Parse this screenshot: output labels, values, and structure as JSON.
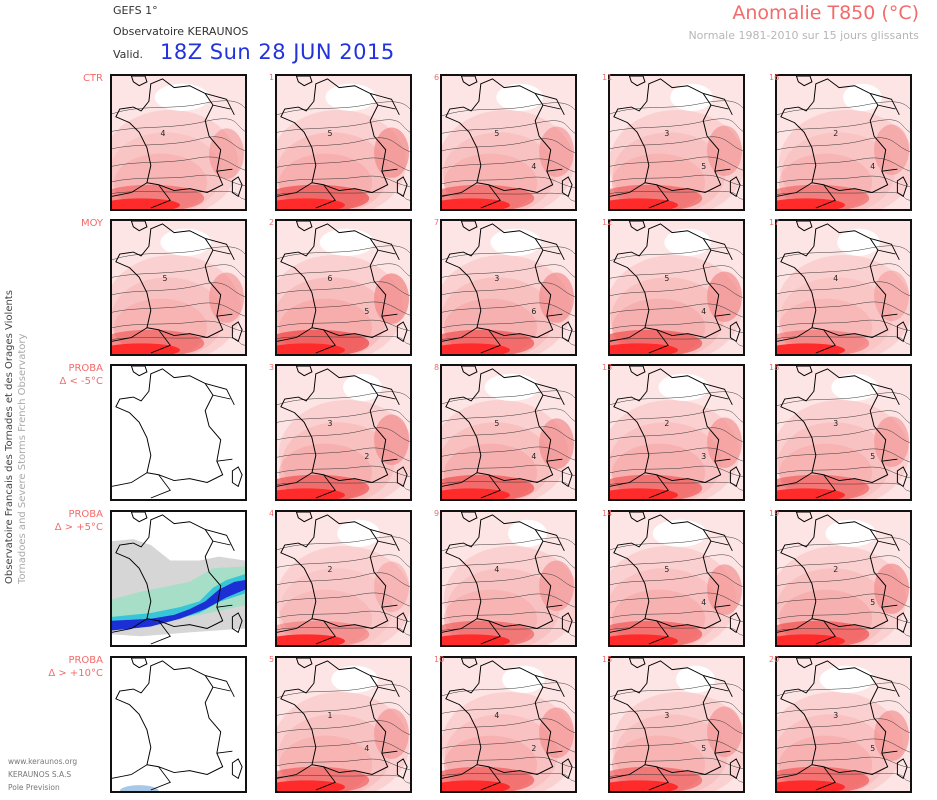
{
  "header": {
    "model": "GEFS 1°",
    "observatory": "Observatoire KERAUNOS",
    "valid_label": "Valid.",
    "valid_time": "18Z Sun 28 JUN 2015",
    "title": "Anomalie T850 (°C)",
    "subtitle": "Normale 1981-2010 sur 15 jours glissants"
  },
  "side_text": {
    "line1": "Observatoire Francais des Tornades et des Orages Violents",
    "line2": "Tornadoes and Severe Storms French Observatory"
  },
  "rows": [
    {
      "label": [
        "CTR"
      ],
      "members": [
        "1",
        "6",
        "11",
        "16"
      ],
      "intensity": [
        0.75,
        0.6,
        0.6,
        0.55
      ]
    },
    {
      "label": [
        "MOY"
      ],
      "members": [
        "2",
        "7",
        "12",
        "17"
      ],
      "intensity": [
        0.8,
        0.7,
        0.7,
        0.45
      ]
    },
    {
      "label": [
        "PROBA",
        "Δ < -5°C"
      ],
      "members": [
        "3",
        "8",
        "13",
        "18"
      ],
      "intensity": [
        0.7,
        0.7,
        0.65,
        0.6
      ]
    },
    {
      "label": [
        "PROBA",
        "Δ > +5°C"
      ],
      "members": [
        "4",
        "9",
        "14",
        "19"
      ],
      "intensity": [
        0.4,
        0.6,
        0.65,
        0.7
      ]
    },
    {
      "label": [
        "PROBA",
        "Δ > +10°C"
      ],
      "members": [
        "5",
        "10",
        "15",
        "20"
      ],
      "intensity": [
        0.6,
        0.65,
        0.6,
        0.65
      ]
    }
  ],
  "contour_labels": {
    "1": [
      "5"
    ],
    "6": [
      "5",
      "4"
    ],
    "11": [
      "3",
      "5"
    ],
    "16": [
      "2",
      "4"
    ],
    "2": [
      "6",
      "5"
    ],
    "7": [
      "3",
      "6"
    ],
    "12": [
      "5",
      "4"
    ],
    "17": [
      "4"
    ],
    "3": [
      "3",
      "2"
    ],
    "8": [
      "5",
      "4"
    ],
    "13": [
      "2",
      "3"
    ],
    "18": [
      "3",
      "5"
    ],
    "4": [
      "2"
    ],
    "9": [
      "4"
    ],
    "14": [
      "5",
      "4"
    ],
    "19": [
      "2",
      "5"
    ],
    "5": [
      "1",
      "4"
    ],
    "10": [
      "4",
      "2"
    ],
    "15": [
      "3",
      "5"
    ],
    "20": [
      "3",
      "5"
    ],
    "ctr": [
      "4"
    ],
    "moy": [
      "5"
    ]
  },
  "footer": {
    "site": "www.keraunos.org",
    "company": "KERAUNOS S.A.S",
    "dept": "Pole Prevision"
  },
  "colors": {
    "anomaly_light": "#fde5e5",
    "anomaly_mid": "#f7a9a9",
    "anomaly_strong": "#ef5050",
    "anomaly_max": "#ff2a2a",
    "proba_gray": "#d6d6d6",
    "proba_green": "#a6dec8",
    "proba_cyan": "#37c5d8",
    "proba_blue": "#1b2fd4",
    "accent_red": "#f26b6b",
    "valid_blue": "#2233dd"
  }
}
